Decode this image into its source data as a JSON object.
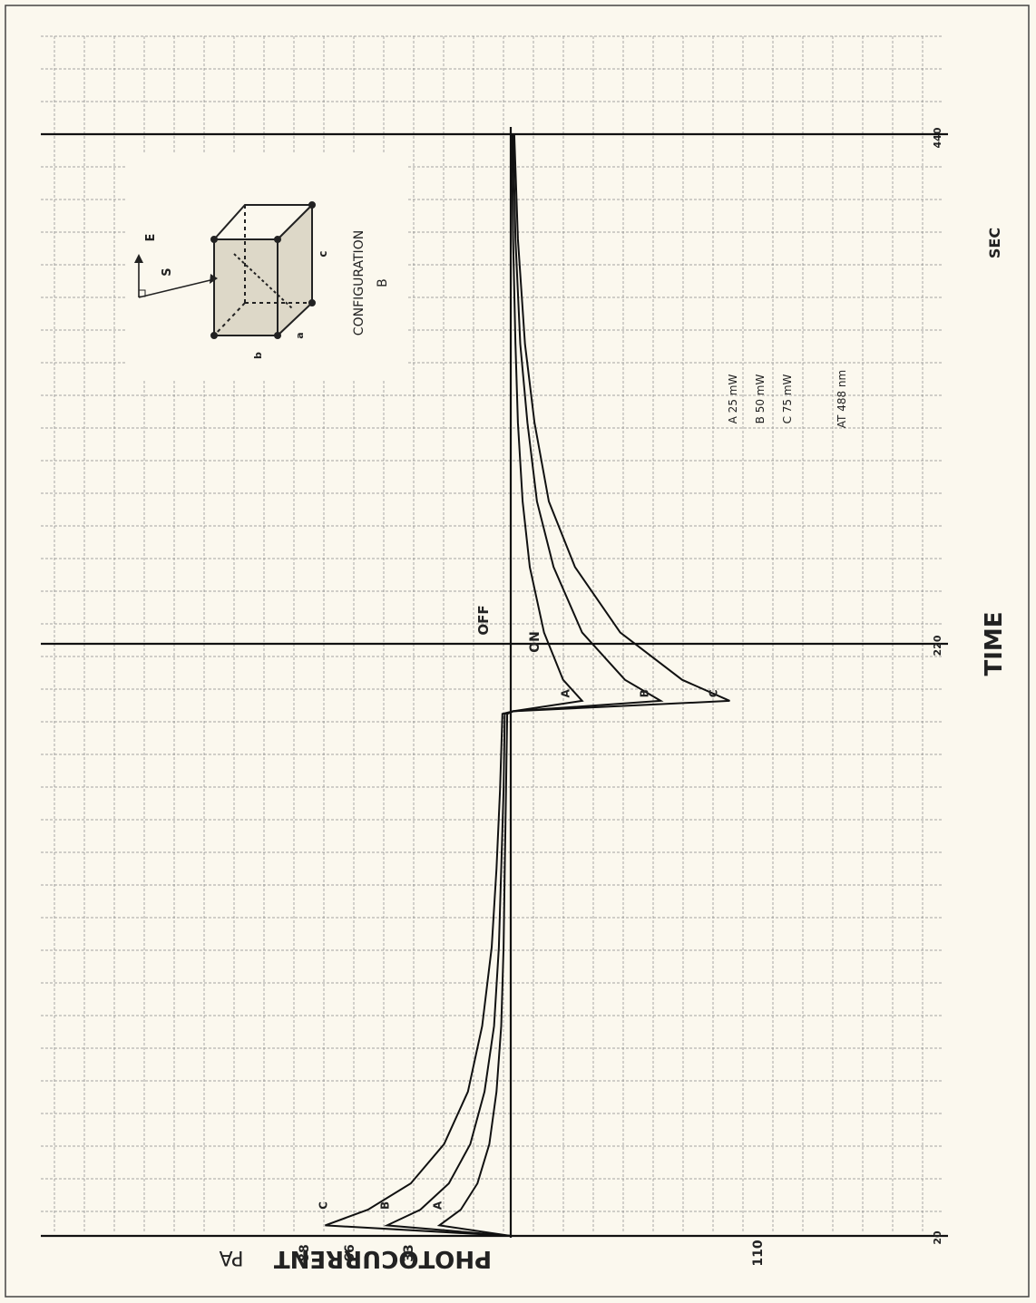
{
  "page": {
    "config_title": "CONFIGURATION",
    "config_name": "B",
    "vector_e": "E",
    "vector_s": "S",
    "crystal_a": "a",
    "crystal_b": "b",
    "crystal_c": "c"
  },
  "annotations": {
    "on": "ON",
    "off": "OFF"
  },
  "legend": {
    "items": [
      "A  25 mW",
      "B  50 mW",
      "C  75 mW"
    ],
    "wavelength": "AT 488 nm"
  },
  "colors": {
    "paper": "#fbf8ee",
    "ink": "#1a1a1a",
    "grid": "#777777"
  },
  "chart_data": {
    "type": "line",
    "orientation": "rotated 90° (time axis runs top-to-bottom, photocurrent axis runs left-to-right)",
    "xlabel": "TIME",
    "x_unit": "SEC",
    "ylabel": "PHOTOCURRENT",
    "y_unit": "PA",
    "x_ticks": [
      "20",
      "220",
      "440"
    ],
    "y_ticks": [
      "88",
      "66",
      "33",
      "110"
    ],
    "xlim": [
      20,
      440
    ],
    "ylim": [
      -110,
      88
    ],
    "grid": true,
    "events": [
      {
        "label": "ON",
        "x": 20
      },
      {
        "label": "OFF",
        "x": 220
      }
    ],
    "series": [
      {
        "name": "A",
        "x": [
          20,
          24,
          30,
          40,
          55,
          75,
          100,
          130,
          160,
          190,
          219,
          220,
          224,
          232,
          250,
          275,
          300,
          330,
          360,
          400,
          440
        ],
        "y": [
          0,
          30,
          21,
          14,
          9,
          6,
          4,
          3,
          2.5,
          2,
          1.5,
          -1,
          -30,
          -22,
          -14,
          -8,
          -5,
          -3,
          -2,
          -1,
          -0.5
        ]
      },
      {
        "name": "B",
        "x": [
          20,
          24,
          30,
          40,
          55,
          75,
          100,
          130,
          160,
          190,
          219,
          220,
          224,
          232,
          250,
          275,
          300,
          330,
          360,
          400,
          440
        ],
        "y": [
          0,
          52,
          38,
          26,
          17,
          11,
          7,
          5,
          4,
          3,
          2.5,
          -1,
          -63,
          -48,
          -30,
          -18,
          -11,
          -7,
          -4,
          -2,
          -1
        ]
      },
      {
        "name": "C",
        "x": [
          20,
          24,
          30,
          40,
          55,
          75,
          100,
          130,
          160,
          190,
          219,
          220,
          224,
          232,
          250,
          275,
          300,
          330,
          360,
          400,
          440
        ],
        "y": [
          0,
          78,
          60,
          42,
          28,
          18,
          12,
          8,
          6,
          4.5,
          3.5,
          -1,
          -92,
          -72,
          -46,
          -27,
          -16,
          -10,
          -6,
          -3,
          -1.5
        ]
      }
    ]
  }
}
